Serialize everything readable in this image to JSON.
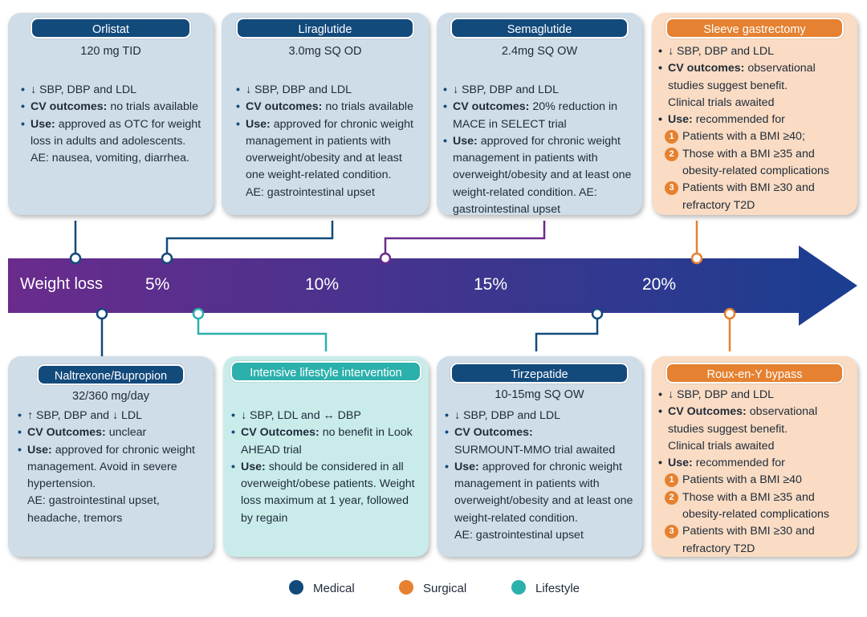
{
  "colors": {
    "medical": "#134a7c",
    "surgical": "#e58131",
    "lifestyle": "#2bb0ac",
    "arrow_start": "#6a2b8c",
    "arrow_end": "#1a3e90"
  },
  "arrow": {
    "axis_label": "Weight loss",
    "ticks": [
      "5%",
      "10%",
      "15%",
      "20%"
    ]
  },
  "cards": {
    "orlistat": {
      "title": "Orlistat",
      "dose": "120 mg TID",
      "l1": "↓ SBP, DBP and LDL",
      "l2_b": "CV outcomes:",
      "l2": " no trials available",
      "l3_b": "Use:",
      "l3": " approved as OTC for weight loss in adults and adolescents.",
      "l4": "AE: nausea, vomiting, diarrhea."
    },
    "liraglutide": {
      "title": "Liraglutide",
      "dose": "3.0mg SQ OD",
      "l1": "↓ SBP, DBP and LDL",
      "l2_b": "CV outcomes:",
      "l2": " no trials available",
      "l3_b": "Use:",
      "l3": " approved for chronic weight management in patients with overweight/obesity and at least one weight-related condition.",
      "l4": "AE: gastrointestinal upset"
    },
    "semaglutide": {
      "title": "Semaglutide",
      "dose": "2.4mg SQ OW",
      "l1": "↓ SBP, DBP and LDL",
      "l2_b": "CV outcomes:",
      "l2": " 20% reduction in MACE in SELECT trial",
      "l3_b": "Use:",
      "l3": " approved for chronic weight management in patients with overweight/obesity and at least one weight-related condition. AE: gastrointestinal upset"
    },
    "sleeve": {
      "title": "Sleeve gastrectomy",
      "l1": "↓ SBP, DBP and LDL",
      "l2_b": "CV outcomes:",
      "l2": " observational studies suggest benefit.",
      "l2b": "Clinical trials awaited",
      "l3_b": "Use:",
      "l3": " recommended for",
      "n1": "Patients with a BMI ≥40;",
      "n2": "Those with a BMI ≥35 and obesity-related complications",
      "n3": "Patients with BMI ≥30 and refractory T2D"
    },
    "naltrexone": {
      "title": "Naltrexone/Bupropion",
      "dose": "32/360 mg/day",
      "l1": "↑ SBP, DBP and ↓ LDL",
      "l2_b": "CV Outcomes:",
      "l2": " unclear",
      "l3_b": "Use:",
      "l3": " approved for chronic weight management. Avoid in severe hypertension.",
      "l4": "AE: gastrointestinal upset, headache, tremors"
    },
    "lifestyle": {
      "title": "Intensive lifestyle intervention",
      "l1": "↓ SBP, LDL and ↔ DBP",
      "l2_b": "CV Outcomes:",
      "l2": " no benefit in Look AHEAD trial",
      "l3_b": "Use:",
      "l3": " should be considered in all overweight/obese patients. Weight loss maximum at 1 year, followed by regain"
    },
    "tirzepatide": {
      "title": "Tirzepatide",
      "dose": "10-15mg SQ OW",
      "l1": "↓ SBP, DBP and LDL",
      "l2_b": "CV Outcomes:",
      "l2": "SURMOUNT-MMO trial awaited",
      "l3_b": "Use:",
      "l3": " approved for chronic weight management in patients with overweight/obesity and at least one weight-related condition.",
      "l4": "AE: gastrointestinal upset"
    },
    "rouxeny": {
      "title": "Roux-en-Y bypass",
      "l1": "↓ SBP, DBP and LDL",
      "l2_b": "CV Outcomes:",
      "l2": " observational studies suggest benefit.",
      "l2b": "Clinical trials awaited",
      "l3_b": "Use:",
      "l3": " recommended for",
      "n1": "Patients with a BMI ≥40",
      "n2": "Those with a BMI ≥35 and obesity-related complications",
      "n3": "Patients with BMI ≥30  and refractory T2D"
    }
  },
  "legend": [
    "Medical",
    "Surgical",
    "Lifestyle"
  ]
}
